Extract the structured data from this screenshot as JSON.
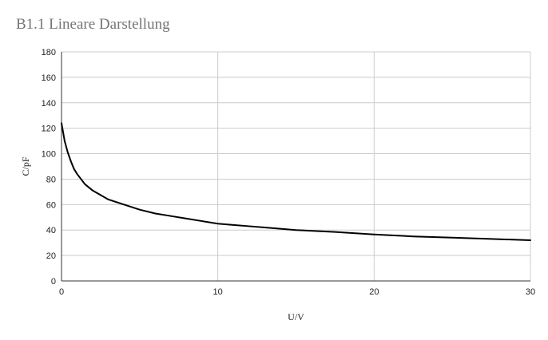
{
  "chart_data": {
    "type": "line",
    "title": "B1.1 Lineare Darstellung",
    "xlabel": "U/V",
    "ylabel": "C/pF",
    "xlim": [
      0,
      30
    ],
    "ylim": [
      0,
      180
    ],
    "x_ticks": [
      "0",
      "10",
      "20",
      "30"
    ],
    "y_ticks": [
      "0",
      "20",
      "40",
      "60",
      "80",
      "100",
      "120",
      "140",
      "160",
      "180"
    ],
    "grid": true,
    "series": [
      {
        "color": "#000000",
        "points": [
          [
            0,
            124
          ],
          [
            0.2,
            110
          ],
          [
            0.4,
            101
          ],
          [
            0.6,
            94
          ],
          [
            0.8,
            88
          ],
          [
            1.0,
            84
          ],
          [
            1.5,
            76
          ],
          [
            2.0,
            71
          ],
          [
            3.0,
            64
          ],
          [
            4.0,
            60
          ],
          [
            5.0,
            56
          ],
          [
            6.0,
            53
          ],
          [
            7.0,
            51
          ],
          [
            8.0,
            49
          ],
          [
            9.0,
            47
          ],
          [
            10.0,
            45
          ],
          [
            11.0,
            44
          ],
          [
            12.0,
            43
          ],
          [
            13.0,
            42
          ],
          [
            15.0,
            40
          ],
          [
            17.5,
            38.5
          ],
          [
            20.0,
            36.5
          ],
          [
            22.5,
            35
          ],
          [
            25.0,
            34
          ],
          [
            27.5,
            33
          ],
          [
            30.0,
            32
          ]
        ]
      }
    ]
  }
}
